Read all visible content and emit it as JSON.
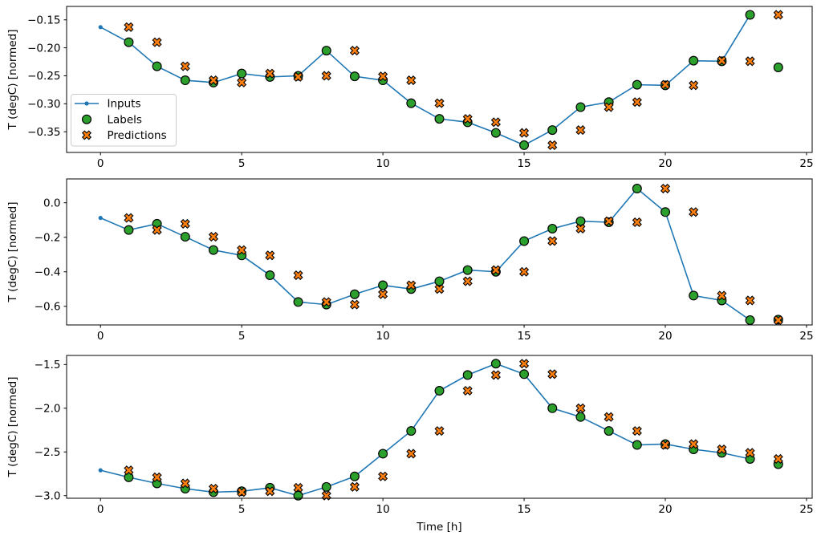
{
  "figure": {
    "xlabel": "Time [h]",
    "xlim": [
      -1.2,
      25.2
    ],
    "x_ticks": {
      "values": [
        0,
        5,
        10,
        15,
        20,
        25
      ],
      "labels": [
        "0",
        "5",
        "10",
        "15",
        "20",
        "25"
      ]
    },
    "colors": {
      "inputs": "#1f77b4",
      "labels": "#2ca02c",
      "predictions": "#ff7f0e",
      "marker_edge": "#000000",
      "legend_border": "#cccccc",
      "background": "#ffffff"
    }
  },
  "legend": {
    "items": [
      {
        "label": "Inputs",
        "marker": "line-with-dot"
      },
      {
        "label": "Labels",
        "marker": "filled-circle"
      },
      {
        "label": "Predictions",
        "marker": "filled-x"
      }
    ]
  },
  "chart_data": [
    {
      "type": "line+scatter",
      "ylabel": "T (degC) [normed]",
      "ylim": [
        -0.387,
        -0.126
      ],
      "y_ticks": {
        "values": [
          -0.15,
          -0.2,
          -0.25,
          -0.3,
          -0.35
        ],
        "labels": [
          "−0.15",
          "−0.20",
          "−0.25",
          "−0.30",
          "−0.35"
        ]
      },
      "series": [
        {
          "name": "Inputs",
          "x": [
            0,
            1,
            2,
            3,
            4,
            5,
            6,
            7,
            8,
            9,
            10,
            11,
            12,
            13,
            14,
            15,
            16,
            17,
            18,
            19,
            20,
            21,
            22,
            23
          ],
          "y": [
            -0.163,
            -0.19,
            -0.233,
            -0.258,
            -0.262,
            -0.246,
            -0.252,
            -0.25,
            -0.205,
            -0.251,
            -0.258,
            -0.299,
            -0.327,
            -0.333,
            -0.352,
            -0.374,
            -0.347,
            -0.306,
            -0.297,
            -0.266,
            -0.267,
            -0.223,
            -0.224,
            -0.141
          ]
        },
        {
          "name": "Labels",
          "x": [
            1,
            2,
            3,
            4,
            5,
            6,
            7,
            8,
            9,
            10,
            11,
            12,
            13,
            14,
            15,
            16,
            17,
            18,
            19,
            20,
            21,
            22,
            23,
            24
          ],
          "y": [
            -0.19,
            -0.233,
            -0.258,
            -0.262,
            -0.246,
            -0.252,
            -0.25,
            -0.205,
            -0.251,
            -0.258,
            -0.299,
            -0.327,
            -0.333,
            -0.352,
            -0.374,
            -0.347,
            -0.306,
            -0.297,
            -0.266,
            -0.267,
            -0.223,
            -0.224,
            -0.141,
            -0.235
          ]
        },
        {
          "name": "Predictions",
          "x": [
            1,
            2,
            3,
            4,
            5,
            6,
            7,
            8,
            9,
            10,
            11,
            12,
            13,
            14,
            15,
            16,
            17,
            18,
            19,
            20,
            21,
            22,
            23,
            24
          ],
          "y": [
            -0.163,
            -0.19,
            -0.233,
            -0.258,
            -0.262,
            -0.246,
            -0.252,
            -0.25,
            -0.205,
            -0.251,
            -0.258,
            -0.299,
            -0.327,
            -0.333,
            -0.352,
            -0.374,
            -0.347,
            -0.306,
            -0.297,
            -0.266,
            -0.267,
            -0.223,
            -0.224,
            -0.141
          ]
        }
      ]
    },
    {
      "type": "line+scatter",
      "ylabel": "T (degC) [normed]",
      "ylim": [
        -0.708,
        0.138
      ],
      "y_ticks": {
        "values": [
          0.0,
          -0.2,
          -0.4,
          -0.6
        ],
        "labels": [
          "0.0",
          "−0.2",
          "−0.4",
          "−0.6"
        ]
      },
      "series": [
        {
          "name": "Inputs",
          "x": [
            0,
            1,
            2,
            3,
            4,
            5,
            6,
            7,
            8,
            9,
            10,
            11,
            12,
            13,
            14,
            15,
            16,
            17,
            18,
            19,
            20,
            21,
            22,
            23
          ],
          "y": [
            -0.088,
            -0.158,
            -0.122,
            -0.197,
            -0.274,
            -0.305,
            -0.42,
            -0.575,
            -0.59,
            -0.53,
            -0.478,
            -0.5,
            -0.455,
            -0.39,
            -0.4,
            -0.222,
            -0.15,
            -0.107,
            -0.113,
            0.082,
            -0.054,
            -0.538,
            -0.566,
            -0.68
          ]
        },
        {
          "name": "Labels",
          "x": [
            1,
            2,
            3,
            4,
            5,
            6,
            7,
            8,
            9,
            10,
            11,
            12,
            13,
            14,
            15,
            16,
            17,
            18,
            19,
            20,
            21,
            22,
            23,
            24
          ],
          "y": [
            -0.158,
            -0.122,
            -0.197,
            -0.274,
            -0.305,
            -0.42,
            -0.575,
            -0.59,
            -0.53,
            -0.478,
            -0.5,
            -0.455,
            -0.39,
            -0.4,
            -0.222,
            -0.15,
            -0.107,
            -0.113,
            0.082,
            -0.054,
            -0.538,
            -0.566,
            -0.68,
            -0.677
          ]
        },
        {
          "name": "Predictions",
          "x": [
            1,
            2,
            3,
            4,
            5,
            6,
            7,
            8,
            9,
            10,
            11,
            12,
            13,
            14,
            15,
            16,
            17,
            18,
            19,
            20,
            21,
            22,
            23,
            24
          ],
          "y": [
            -0.088,
            -0.158,
            -0.122,
            -0.197,
            -0.274,
            -0.305,
            -0.42,
            -0.575,
            -0.59,
            -0.53,
            -0.478,
            -0.5,
            -0.455,
            -0.39,
            -0.4,
            -0.222,
            -0.15,
            -0.107,
            -0.113,
            0.082,
            -0.054,
            -0.538,
            -0.566,
            -0.68
          ]
        }
      ]
    },
    {
      "type": "line+scatter",
      "ylabel": "T (degC) [normed]",
      "ylim": [
        -3.03,
        -1.396
      ],
      "y_ticks": {
        "values": [
          -1.5,
          -2.0,
          -2.5,
          -3.0
        ],
        "labels": [
          "−1.5",
          "−2.0",
          "−2.5",
          "−3.0"
        ]
      },
      "series": [
        {
          "name": "Inputs",
          "x": [
            0,
            1,
            2,
            3,
            4,
            5,
            6,
            7,
            8,
            9,
            10,
            11,
            12,
            13,
            14,
            15,
            16,
            17,
            18,
            19,
            20,
            21,
            22,
            23
          ],
          "y": [
            -2.71,
            -2.79,
            -2.86,
            -2.92,
            -2.96,
            -2.95,
            -2.91,
            -3.0,
            -2.9,
            -2.78,
            -2.52,
            -2.26,
            -1.8,
            -1.62,
            -1.49,
            -1.61,
            -2.0,
            -2.1,
            -2.26,
            -2.42,
            -2.41,
            -2.47,
            -2.51,
            -2.58
          ]
        },
        {
          "name": "Labels",
          "x": [
            1,
            2,
            3,
            4,
            5,
            6,
            7,
            8,
            9,
            10,
            11,
            12,
            13,
            14,
            15,
            16,
            17,
            18,
            19,
            20,
            21,
            22,
            23,
            24
          ],
          "y": [
            -2.79,
            -2.86,
            -2.92,
            -2.96,
            -2.95,
            -2.91,
            -3.0,
            -2.9,
            -2.78,
            -2.52,
            -2.26,
            -1.8,
            -1.62,
            -1.49,
            -1.61,
            -2.0,
            -2.1,
            -2.26,
            -2.42,
            -2.41,
            -2.47,
            -2.51,
            -2.58,
            -2.64
          ]
        },
        {
          "name": "Predictions",
          "x": [
            1,
            2,
            3,
            4,
            5,
            6,
            7,
            8,
            9,
            10,
            11,
            12,
            13,
            14,
            15,
            16,
            17,
            18,
            19,
            20,
            21,
            22,
            23,
            24
          ],
          "y": [
            -2.71,
            -2.79,
            -2.86,
            -2.92,
            -2.96,
            -2.95,
            -2.91,
            -3.0,
            -2.9,
            -2.78,
            -2.52,
            -2.26,
            -1.8,
            -1.62,
            -1.49,
            -1.61,
            -2.0,
            -2.1,
            -2.26,
            -2.42,
            -2.41,
            -2.47,
            -2.51,
            -2.58
          ]
        }
      ]
    }
  ]
}
